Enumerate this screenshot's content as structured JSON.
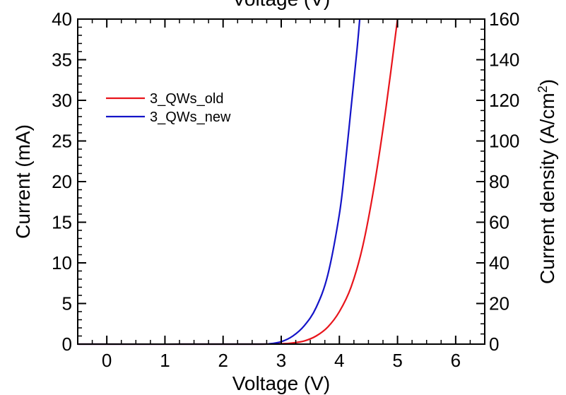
{
  "chart_data": {
    "type": "line",
    "top_xlabel": "Voltage (V)",
    "xlabel": "Voltage (V)",
    "ylabel": "Current (mA)",
    "y2label": "Current density (A/cm",
    "y2label_sup": "2",
    "y2label_end": ")",
    "xlim": [
      -0.5,
      6.5
    ],
    "ylim": [
      0,
      40
    ],
    "y2lim": [
      0,
      160
    ],
    "xticks": [
      0,
      1,
      2,
      3,
      4,
      5,
      6
    ],
    "xtick_labels": [
      "0",
      "1",
      "2",
      "3",
      "4",
      "5",
      "6"
    ],
    "yticks": [
      0,
      5,
      10,
      15,
      20,
      25,
      30,
      35,
      40
    ],
    "ytick_labels": [
      "0",
      "5",
      "10",
      "15",
      "20",
      "25",
      "30",
      "35",
      "40"
    ],
    "y2ticks": [
      0,
      20,
      40,
      60,
      80,
      100,
      120,
      140,
      160
    ],
    "y2tick_labels": [
      "0",
      "20",
      "40",
      "60",
      "80",
      "100",
      "120",
      "140",
      "160"
    ],
    "grid": false,
    "legend_position": "upper-left",
    "series": [
      {
        "name": "3_QWs_old",
        "color": "#e8141b",
        "x": [
          -0.5,
          2.5,
          3.0,
          3.2,
          3.4,
          3.6,
          3.8,
          4.0,
          4.2,
          4.4,
          4.6,
          4.8,
          5.0
        ],
        "y": [
          0,
          0,
          0.05,
          0.15,
          0.4,
          1.0,
          2.1,
          4.0,
          7.0,
          12.0,
          19.5,
          29.0,
          40.0
        ]
      },
      {
        "name": "3_QWs_new",
        "color": "#1414c8",
        "x": [
          -0.5,
          2.5,
          2.8,
          3.0,
          3.2,
          3.4,
          3.6,
          3.8,
          4.0,
          4.1,
          4.2,
          4.3,
          4.35
        ],
        "y": [
          0,
          0,
          0.05,
          0.3,
          1.0,
          2.3,
          4.5,
          8.5,
          16.0,
          22.0,
          29.0,
          36.0,
          40.0
        ]
      }
    ]
  }
}
